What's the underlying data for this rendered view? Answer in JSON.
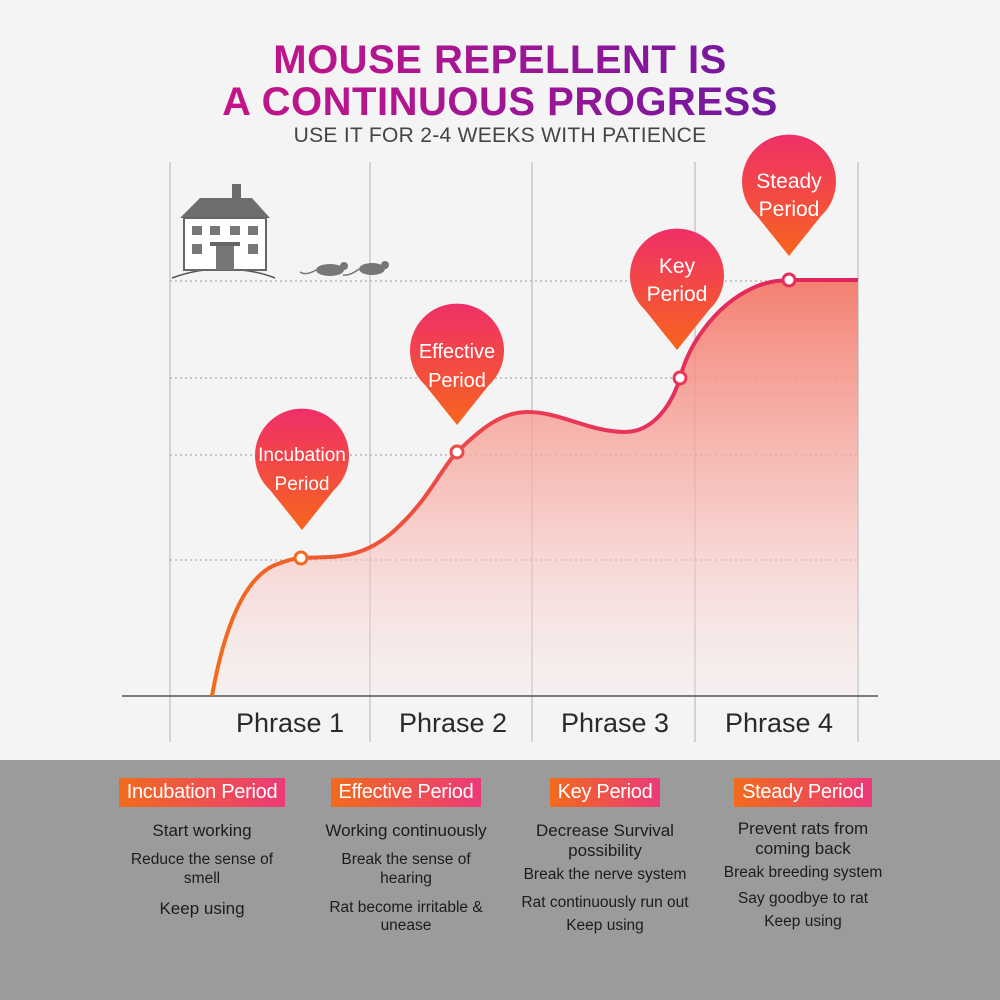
{
  "title": {
    "line1": "MOUSE REPELLENT IS",
    "line2": "A CONTINUOUS PROGRESS",
    "subtitle": "USE IT FOR 2-4 WEEKS WITH PATIENCE"
  },
  "colors": {
    "curve_start": "#f26b1d",
    "curve_end": "#e0225f",
    "pin_top": "#ef2f68",
    "pin_bottom": "#f7651e",
    "bottom_panel": "#9b9b9b"
  },
  "illustration": {
    "house": "house-icon",
    "rats": "rat-icon"
  },
  "phrases": [
    "Phrase 1",
    "Phrase 2",
    "Phrase 3",
    "Phrase 4"
  ],
  "markers": [
    {
      "line1": "Incubation",
      "line2": "Period",
      "progress_level": 1
    },
    {
      "line1": "Effective",
      "line2": "Period",
      "progress_level": 2
    },
    {
      "line1": "Key",
      "line2": "Period",
      "progress_level": 3
    },
    {
      "line1": "Steady",
      "line2": "Period",
      "progress_level": 4
    }
  ],
  "periods": [
    {
      "badge": "Incubation Period",
      "items": [
        "Start working",
        "Reduce the sense of smell",
        "Keep using"
      ]
    },
    {
      "badge": "Effective Period",
      "items": [
        "Working continuously",
        "Break the sense of hearing",
        "Rat become irritable & unease"
      ]
    },
    {
      "badge": "Key Period",
      "items": [
        "Decrease Survival possibility",
        "Break the nerve system",
        "Rat continuously run out",
        "Keep using"
      ]
    },
    {
      "badge": "Steady Period",
      "items": [
        "Prevent rats from coming back",
        "Break breeding system",
        "Say goodbye to rat",
        "Keep using"
      ]
    }
  ]
}
